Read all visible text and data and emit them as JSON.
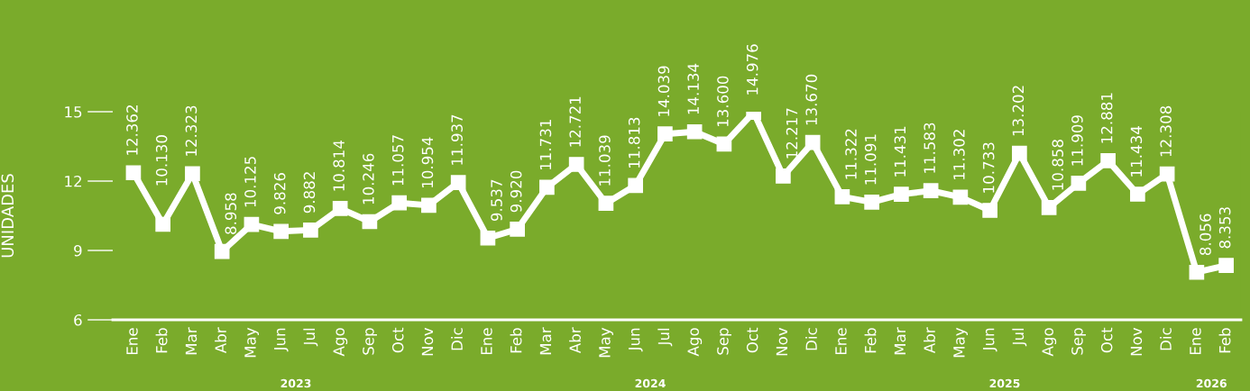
{
  "chart_data": {
    "type": "line",
    "ylabel": "UNIDADES",
    "categories": [
      "Ene",
      "Feb",
      "Mar",
      "Abr",
      "May",
      "Jun",
      "Jul",
      "Ago",
      "Sep",
      "Oct",
      "Nov",
      "Dic",
      "Ene",
      "Feb",
      "Mar",
      "Abr",
      "May",
      "Jun",
      "Jul",
      "Ago",
      "Sep",
      "Oct",
      "Nov",
      "Dic",
      "Ene",
      "Feb",
      "Mar",
      "Abr",
      "May",
      "Jun",
      "Jul",
      "Ago",
      "Sep",
      "Oct",
      "Nov",
      "Dic",
      "Ene",
      "Feb"
    ],
    "series": [
      {
        "color": "#ffffff",
        "values": [
          12.362,
          10.13,
          12.323,
          8.958,
          10.125,
          9.826,
          9.882,
          10.814,
          10.246,
          11.057,
          10.954,
          11.937,
          9.537,
          9.92,
          11.731,
          12.721,
          11.039,
          11.813,
          14.039,
          14.134,
          13.6,
          14.976,
          12.217,
          13.67,
          11.322,
          11.091,
          11.431,
          11.583,
          11.302,
          10.733,
          13.202,
          10.858,
          11.909,
          12.881,
          11.434,
          12.308,
          8.056,
          8.353
        ],
        "value_labels": [
          "12.362",
          "10.130",
          "12.323",
          "8.958",
          "10.125",
          "9.826",
          "9.882",
          "10.814",
          "10.246",
          "11.057",
          "10.954",
          "11.937",
          "9.537",
          "9.920",
          "11.731",
          "12.721",
          "11.039",
          "11.813",
          "14.039",
          "14.134",
          "13.600",
          "14.976",
          "12.217",
          "13.670",
          "11.322",
          "11.091",
          "11.431",
          "11.583",
          "11.302",
          "10.733",
          "13.202",
          "10.858",
          "11.909",
          "12.881",
          "11.434",
          "12.308",
          "8.056",
          "8.353"
        ]
      }
    ],
    "ylim": [
      6,
      15
    ],
    "yticks": [
      6,
      9,
      12,
      15
    ],
    "grid": false,
    "legend": false,
    "marker": "square",
    "line_style": "solid",
    "annotations": [
      "2023",
      "2024",
      "2025",
      "2026"
    ]
  }
}
